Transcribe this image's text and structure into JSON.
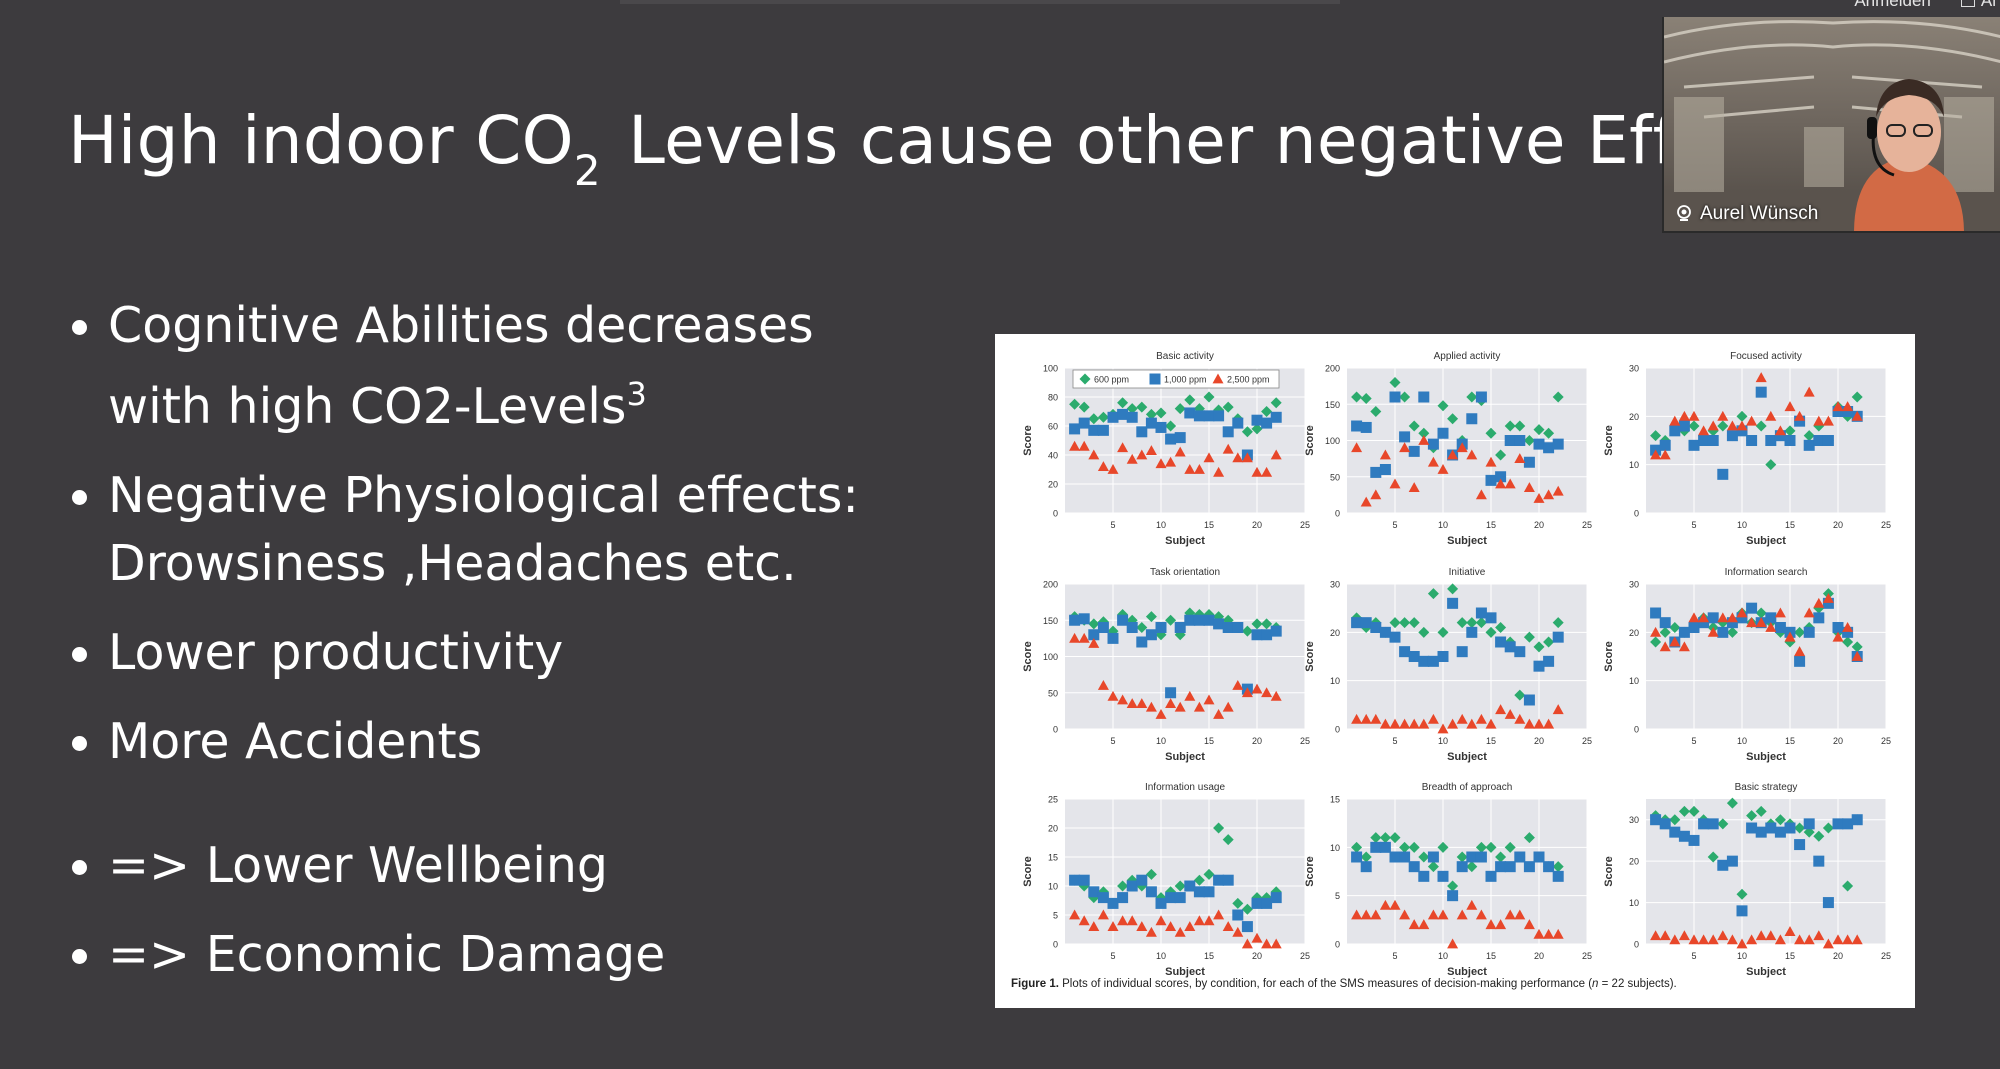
{
  "window": {
    "corner_labels": [
      "Anmelden",
      "Al"
    ]
  },
  "slide": {
    "title_prefix": "High indoor CO",
    "title_sub": "2",
    "title_suffix": " Levels cause other negative Effec",
    "bullets": [
      {
        "line1": "Cognitive Abilities decreases",
        "line2": "with high CO2-Levels",
        "sup": "3"
      },
      {
        "line1": "Negative Physiological effects:",
        "line2": "Drowsiness ,Headaches etc."
      },
      {
        "line1": "Lower productivity"
      },
      {
        "line1": "More Accidents"
      },
      {
        "line1": "=> Lower Wellbeing"
      },
      {
        "line1": "=> Economic Damage"
      }
    ]
  },
  "webcam": {
    "participant_name": "Aurel Wünsch",
    "icon": "microphone-icon"
  },
  "colors": {
    "background": "#3d3b3e",
    "series_600": "#2bab6d",
    "series_1000": "#2f7bbf",
    "series_2500": "#e8472a"
  },
  "chart_data": {
    "caption_bold": "Figure 1.",
    "caption": " Plots of individual scores, by condition, for each of the SMS measures of decision-making performance (",
    "caption_n": "n",
    "caption_end": "= 22 subjects).",
    "legend": [
      "600 ppm",
      "1,000 ppm",
      "2,500 ppm"
    ],
    "xlabel": "Subject",
    "ylabel": "Score",
    "xticks": [
      5,
      10,
      15,
      20,
      25
    ],
    "xlim": [
      0,
      25
    ],
    "panels": [
      {
        "type": "scatter",
        "title": "Basic activity",
        "ylim": [
          0,
          100
        ],
        "yticks": [
          0,
          20,
          40,
          60,
          80,
          100
        ],
        "series": [
          {
            "name": "600 ppm",
            "values": [
              75,
              73,
              65,
              66,
              68,
              76,
              72,
              73,
              68,
              69,
              60,
              72,
              78,
              72,
              80,
              71,
              73,
              65,
              56,
              58,
              70,
              76
            ]
          },
          {
            "name": "1,000 ppm",
            "values": [
              58,
              62,
              57,
              57,
              66,
              68,
              66,
              56,
              62,
              59,
              51,
              52,
              69,
              67,
              67,
              67,
              56,
              62,
              40,
              64,
              62,
              66
            ]
          },
          {
            "name": "2,500 ppm",
            "values": [
              46,
              46,
              40,
              32,
              30,
              45,
              37,
              40,
              43,
              34,
              35,
              42,
              30,
              30,
              38,
              28,
              44,
              38,
              38,
              28,
              28,
              40
            ]
          }
        ]
      },
      {
        "type": "scatter",
        "title": "Applied activity",
        "ylim": [
          0,
          200
        ],
        "yticks": [
          0,
          50,
          100,
          150,
          200
        ],
        "series": [
          {
            "name": "600 ppm",
            "values": [
              160,
              158,
              140,
              60,
              180,
              160,
              120,
              110,
              90,
              148,
              130,
              100,
              160,
              155,
              110,
              80,
              120,
              120,
              100,
              115,
              110,
              160
            ]
          },
          {
            "name": "1,000 ppm",
            "values": [
              120,
              118,
              56,
              60,
              160,
              105,
              85,
              160,
              95,
              110,
              80,
              95,
              130,
              160,
              45,
              50,
              100,
              100,
              70,
              95,
              90,
              95
            ]
          },
          {
            "name": "2,500 ppm",
            "values": [
              90,
              15,
              25,
              80,
              40,
              90,
              35,
              100,
              70,
              60,
              80,
              90,
              80,
              25,
              70,
              40,
              40,
              75,
              35,
              20,
              25,
              30
            ]
          }
        ]
      },
      {
        "type": "scatter",
        "title": "Focused activity",
        "ylim": [
          0,
          30
        ],
        "yticks": [
          0,
          10,
          20,
          30
        ],
        "series": [
          {
            "name": "600 ppm",
            "values": [
              16,
              15,
              18,
              17,
              18,
              16,
              17,
              18,
              16,
              20,
              15,
              18,
              10,
              16,
              17,
              19,
              16,
              18,
              15,
              22,
              20,
              24
            ]
          },
          {
            "name": "1,000 ppm",
            "values": [
              13,
              14,
              17,
              18,
              14,
              15,
              15,
              8,
              16,
              17,
              15,
              25,
              15,
              16,
              15,
              19,
              14,
              15,
              15,
              21,
              21,
              20
            ]
          },
          {
            "name": "2,500 ppm",
            "values": [
              12,
              12,
              19,
              20,
              20,
              17,
              18,
              20,
              18,
              18,
              19,
              28,
              20,
              17,
              22,
              20,
              25,
              19,
              19,
              22,
              22,
              20
            ]
          }
        ]
      },
      {
        "type": "scatter",
        "title": "Task orientation",
        "ylim": [
          0,
          200
        ],
        "yticks": [
          0,
          50,
          100,
          150,
          200
        ],
        "series": [
          {
            "name": "600 ppm",
            "values": [
              155,
              150,
              145,
              148,
              135,
              158,
              150,
              140,
              155,
              130,
              150,
              130,
              160,
              158,
              158,
              155,
              150,
              140,
              135,
              145,
              145,
              140
            ]
          },
          {
            "name": "1,000 ppm",
            "values": [
              150,
              152,
              130,
              140,
              125,
              150,
              140,
              120,
              130,
              140,
              50,
              140,
              150,
              150,
              150,
              145,
              140,
              140,
              55,
              130,
              130,
              135
            ]
          },
          {
            "name": "2,500 ppm",
            "values": [
              125,
              125,
              118,
              60,
              45,
              40,
              35,
              35,
              30,
              20,
              35,
              30,
              45,
              30,
              40,
              20,
              30,
              60,
              50,
              55,
              50,
              45
            ]
          }
        ]
      },
      {
        "type": "scatter",
        "title": "Initiative",
        "ylim": [
          0,
          30
        ],
        "yticks": [
          0,
          10,
          20,
          30
        ],
        "series": [
          {
            "name": "600 ppm",
            "values": [
              23,
              21,
              22,
              20,
              22,
              22,
              22,
              20,
              28,
              20,
              29,
              22,
              22,
              22,
              20,
              21,
              18,
              7,
              19,
              17,
              18,
              22
            ]
          },
          {
            "name": "1,000 ppm",
            "values": [
              22,
              22,
              21,
              20,
              19,
              16,
              15,
              14,
              14,
              15,
              26,
              16,
              20,
              24,
              23,
              18,
              17,
              16,
              6,
              13,
              14,
              19
            ]
          },
          {
            "name": "2,500 ppm",
            "values": [
              2,
              2,
              2,
              1,
              1,
              1,
              1,
              1,
              2,
              0,
              1,
              2,
              1,
              2,
              1,
              4,
              3,
              2,
              1,
              1,
              1,
              4
            ]
          }
        ]
      },
      {
        "type": "scatter",
        "title": "Information search",
        "ylim": [
          0,
          30
        ],
        "yticks": [
          0,
          10,
          20,
          30
        ],
        "series": [
          {
            "name": "600 ppm",
            "values": [
              18,
              20,
              21,
              20,
              22,
              23,
              21,
              22,
              20,
              24,
              22,
              24,
              22,
              20,
              18,
              20,
              21,
              25,
              28,
              20,
              18,
              17
            ]
          },
          {
            "name": "1,000 ppm",
            "values": [
              24,
              22,
              18,
              20,
              21,
              22,
              23,
              20,
              22,
              23,
              25,
              22,
              23,
              21,
              20,
              14,
              20,
              23,
              26,
              21,
              20,
              15
            ]
          },
          {
            "name": "2,500 ppm",
            "values": [
              20,
              17,
              18,
              17,
              23,
              23,
              20,
              23,
              23,
              24,
              22,
              22,
              21,
              24,
              19,
              16,
              24,
              26,
              27,
              19,
              21,
              15
            ]
          }
        ]
      },
      {
        "type": "scatter",
        "title": "Information usage",
        "ylim": [
          0,
          25
        ],
        "yticks": [
          0,
          5,
          10,
          15,
          20,
          25
        ],
        "series": [
          {
            "name": "600 ppm",
            "values": [
              11,
              10,
              8,
              9,
              7,
              10,
              11,
              10,
              12,
              8,
              9,
              10,
              10,
              11,
              12,
              20,
              18,
              7,
              6,
              8,
              8,
              9
            ]
          },
          {
            "name": "1,000 ppm",
            "values": [
              11,
              11,
              9,
              8,
              7,
              8,
              10,
              11,
              9,
              7,
              8,
              8,
              10,
              9,
              9,
              11,
              11,
              5,
              3,
              7,
              7,
              8
            ]
          },
          {
            "name": "2,500 ppm",
            "values": [
              5,
              4,
              3,
              5,
              3,
              4,
              4,
              3,
              2,
              4,
              3,
              2,
              3,
              4,
              4,
              5,
              3,
              2,
              0,
              1,
              0,
              0
            ]
          }
        ]
      },
      {
        "type": "scatter",
        "title": "Breadth of approach",
        "ylim": [
          0,
          15
        ],
        "yticks": [
          0,
          5,
          10,
          15
        ],
        "series": [
          {
            "name": "600 ppm",
            "values": [
              10,
              9,
              11,
              11,
              11,
              10,
              10,
              9,
              8,
              10,
              6,
              9,
              8,
              10,
              10,
              9,
              10,
              9,
              11,
              9,
              8,
              8
            ]
          },
          {
            "name": "1,000 ppm",
            "values": [
              9,
              8,
              10,
              10,
              9,
              9,
              8,
              7,
              9,
              7,
              5,
              8,
              9,
              9,
              7,
              8,
              8,
              9,
              8,
              9,
              8,
              7
            ]
          },
          {
            "name": "2,500 ppm",
            "values": [
              3,
              3,
              3,
              4,
              4,
              3,
              2,
              2,
              3,
              3,
              0,
              3,
              4,
              3,
              2,
              2,
              3,
              3,
              2,
              1,
              1,
              1
            ]
          }
        ]
      },
      {
        "type": "scatter",
        "title": "Basic strategy",
        "ylim": [
          0,
          35
        ],
        "yticks": [
          0,
          10,
          20,
          30
        ],
        "series": [
          {
            "name": "600 ppm",
            "values": [
              31,
              30,
              30,
              32,
              32,
              30,
              21,
              29,
              34,
              12,
              31,
              32,
              29,
              30,
              29,
              28,
              27,
              26,
              28,
              29,
              14,
              30
            ]
          },
          {
            "name": "1,000 ppm",
            "values": [
              30,
              29,
              27,
              26,
              25,
              29,
              29,
              19,
              20,
              8,
              28,
              27,
              28,
              27,
              28,
              24,
              29,
              20,
              10,
              29,
              29,
              30
            ]
          },
          {
            "name": "2,500 ppm",
            "values": [
              2,
              2,
              1,
              2,
              1,
              1,
              1,
              2,
              1,
              0,
              1,
              2,
              2,
              1,
              3,
              1,
              1,
              2,
              0,
              1,
              1,
              1
            ]
          }
        ]
      }
    ]
  }
}
